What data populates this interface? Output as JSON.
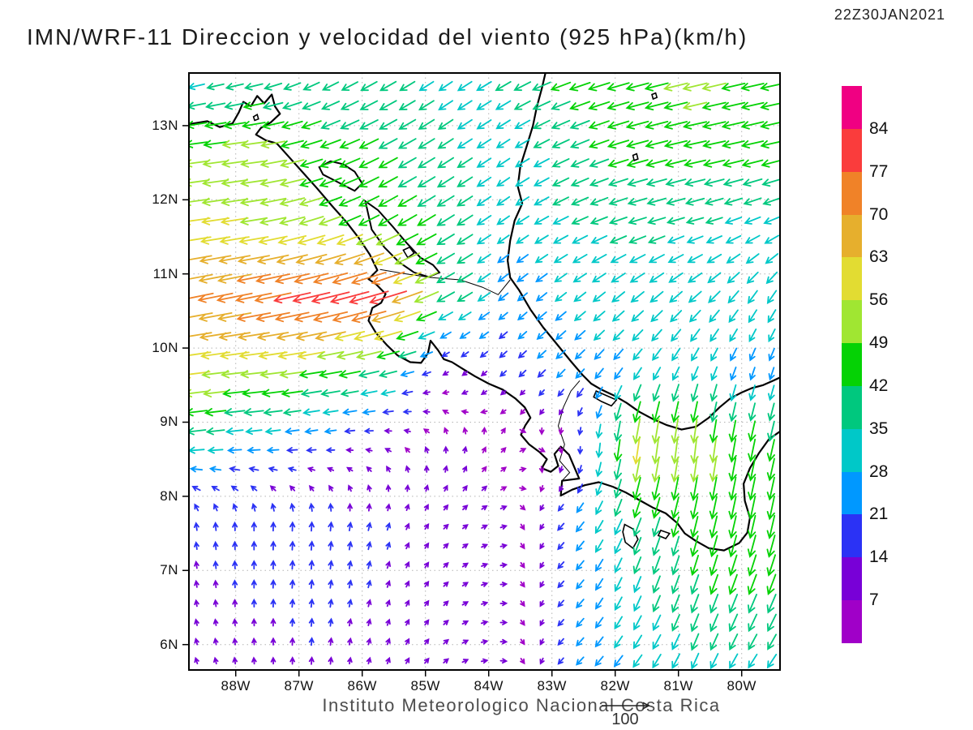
{
  "header": {
    "title": "IMN/WRF-11 Direccion y velocidad del viento (925 hPa)(km/h)",
    "timestamp": "22Z30JAN2021"
  },
  "footer": {
    "credit": "Instituto Meteorologico Nacional Costa Rica",
    "reference_arrow_label": "100"
  },
  "axes": {
    "lat_ticks": [
      {
        "label": "6N",
        "value": 6
      },
      {
        "label": "7N",
        "value": 7
      },
      {
        "label": "8N",
        "value": 8
      },
      {
        "label": "9N",
        "value": 9
      },
      {
        "label": "10N",
        "value": 10
      },
      {
        "label": "11N",
        "value": 11
      },
      {
        "label": "12N",
        "value": 12
      },
      {
        "label": "13N",
        "value": 13
      }
    ],
    "lon_ticks": [
      {
        "label": "88W",
        "value": -88
      },
      {
        "label": "87W",
        "value": -87
      },
      {
        "label": "86W",
        "value": -86
      },
      {
        "label": "85W",
        "value": -85
      },
      {
        "label": "84W",
        "value": -84
      },
      {
        "label": "83W",
        "value": -83
      },
      {
        "label": "82W",
        "value": -82
      },
      {
        "label": "81W",
        "value": -81
      },
      {
        "label": "80W",
        "value": -80
      }
    ]
  },
  "colorbar": {
    "unit": "km/h",
    "levels": [
      7,
      14,
      21,
      28,
      35,
      42,
      49,
      56,
      63,
      70,
      77,
      84
    ],
    "colors": [
      "#A000C8",
      "#7800D7",
      "#2B32F5",
      "#0098FF",
      "#00C8C8",
      "#00C87E",
      "#05D205",
      "#A0E632",
      "#E2DC32",
      "#E6AF2D",
      "#F08228",
      "#FA3C3C",
      "#F00082"
    ]
  },
  "chart_data": {
    "type": "vector_field",
    "title": "IMN/WRF-11 Direccion y velocidad del viento (925 hPa)(km/h)",
    "valid_time": "22Z30JAN2021",
    "units": "km/h",
    "level": "925 hPa",
    "lon_range": [
      -88.74,
      -79.4
    ],
    "lat_range": [
      5.66,
      13.71
    ],
    "reference_vector": {
      "label": "100",
      "value": 100
    },
    "speed_levels": [
      7,
      14,
      21,
      28,
      35,
      42,
      49,
      56,
      63,
      70,
      77,
      84
    ],
    "grid_lats": [
      5.7,
      6.7,
      7.7,
      8.7,
      9.7,
      10.7,
      11.7,
      12.7,
      13.7
    ],
    "grid_lons": [
      -88.7,
      -87.7,
      -86.7,
      -85.7,
      -84.7,
      -83.7,
      -82.7,
      -81.7,
      -80.7,
      -79.7
    ],
    "u": [
      [
        -3,
        -1,
        1,
        3,
        6,
        8,
        -14,
        -18,
        -14,
        -18
      ],
      [
        -2,
        0,
        2,
        4,
        6,
        8,
        -15,
        -13,
        -14,
        -16
      ],
      [
        -2,
        0,
        1,
        4,
        7,
        7,
        -16,
        -14,
        -10,
        -10
      ],
      [
        -35,
        -27,
        -19,
        -9,
        -1,
        5,
        2,
        -8,
        -6,
        -10
      ],
      [
        -57,
        -55,
        -49,
        -40,
        -8,
        -13,
        -18,
        -16,
        -12,
        -8
      ],
      [
        -70,
        -74,
        -77,
        -82,
        -36,
        -18,
        -23,
        -26,
        -25,
        -18
      ],
      [
        -57,
        -55,
        -49,
        -40,
        -35,
        -24,
        -32,
        -36,
        -34,
        -31
      ],
      [
        -47,
        -53,
        -43,
        -38,
        -31,
        -26,
        -36,
        -44,
        -46,
        -44
      ],
      [
        -30,
        -33,
        -30,
        -32,
        -26,
        -32,
        -42,
        -46,
        -50,
        -46
      ]
    ],
    "v": [
      [
        8,
        11,
        14,
        9,
        5,
        -1,
        -14,
        -24,
        -31,
        -26
      ],
      [
        12,
        15,
        16,
        13,
        6,
        0,
        -15,
        -31,
        -39,
        -40
      ],
      [
        15,
        17,
        18,
        15,
        7,
        2,
        -17,
        -37,
        -44,
        -48
      ],
      [
        -4,
        -3,
        -3,
        2,
        8,
        5,
        -6,
        -58,
        -54,
        -44
      ],
      [
        -7,
        -6,
        -8,
        -10,
        -5,
        -12,
        -18,
        -22,
        -27,
        -24
      ],
      [
        -14,
        -15,
        -18,
        -24,
        -20,
        -15,
        -18,
        -21,
        -22,
        -26
      ],
      [
        -8,
        -9,
        -16,
        -22,
        -22,
        -17,
        -15,
        -11,
        -10,
        -13
      ],
      [
        -6,
        -7,
        -14,
        -20,
        -20,
        -17,
        -16,
        -12,
        -10,
        -10
      ],
      [
        -8,
        -9,
        -16,
        -18,
        -18,
        -18,
        -14,
        -12,
        -12,
        -10
      ]
    ]
  },
  "map": {
    "coastlines": [
      {
        "name": "pacific-coast",
        "points": [
          [
            -88.74,
            13.02
          ],
          [
            -88.45,
            13.06
          ],
          [
            -88.25,
            12.98
          ],
          [
            -88.05,
            13.03
          ],
          [
            -87.95,
            13.18
          ],
          [
            -87.88,
            13.32
          ],
          [
            -87.76,
            13.26
          ],
          [
            -87.66,
            13.4
          ],
          [
            -87.55,
            13.3
          ],
          [
            -87.43,
            13.42
          ],
          [
            -87.38,
            13.26
          ],
          [
            -87.3,
            13.16
          ],
          [
            -87.45,
            13.04
          ],
          [
            -87.6,
            12.97
          ],
          [
            -87.68,
            12.88
          ],
          [
            -87.52,
            12.8
          ],
          [
            -87.35,
            12.76
          ],
          [
            -87.16,
            12.58
          ],
          [
            -86.95,
            12.38
          ],
          [
            -86.72,
            12.16
          ],
          [
            -86.48,
            11.92
          ],
          [
            -86.25,
            11.7
          ],
          [
            -86.05,
            11.48
          ],
          [
            -85.88,
            11.26
          ],
          [
            -85.76,
            11.05
          ],
          [
            -85.9,
            10.93
          ],
          [
            -85.78,
            10.86
          ],
          [
            -85.63,
            10.73
          ],
          [
            -85.7,
            10.61
          ],
          [
            -85.84,
            10.54
          ],
          [
            -85.9,
            10.37
          ],
          [
            -85.78,
            10.2
          ],
          [
            -85.61,
            10.04
          ],
          [
            -85.44,
            9.9
          ],
          [
            -85.24,
            9.81
          ],
          [
            -85.07,
            9.8
          ],
          [
            -84.96,
            9.93
          ],
          [
            -84.92,
            10.1
          ],
          [
            -84.8,
            9.97
          ],
          [
            -84.71,
            9.85
          ],
          [
            -84.58,
            9.81
          ],
          [
            -84.43,
            9.73
          ],
          [
            -84.22,
            9.62
          ],
          [
            -84,
            9.52
          ],
          [
            -83.78,
            9.44
          ],
          [
            -83.58,
            9.32
          ],
          [
            -83.43,
            9.2
          ],
          [
            -83.34,
            9.06
          ],
          [
            -83.42,
            8.96
          ],
          [
            -83.49,
            8.83
          ],
          [
            -83.36,
            8.7
          ],
          [
            -83.2,
            8.6
          ],
          [
            -83.08,
            8.5
          ],
          [
            -83.16,
            8.38
          ],
          [
            -83.02,
            8.33
          ],
          [
            -82.9,
            8.41
          ],
          [
            -82.96,
            8.57
          ],
          [
            -82.86,
            8.67
          ],
          [
            -82.73,
            8.56
          ],
          [
            -82.65,
            8.4
          ],
          [
            -82.57,
            8.24
          ],
          [
            -82.84,
            8.21
          ],
          [
            -82.86,
            8.01
          ],
          [
            -82.68,
            8.09
          ],
          [
            -82.48,
            8.15
          ],
          [
            -82.26,
            8.19
          ],
          [
            -82.04,
            8.13
          ],
          [
            -81.83,
            8.05
          ],
          [
            -81.62,
            7.95
          ],
          [
            -81.41,
            7.85
          ],
          [
            -81.2,
            7.77
          ],
          [
            -81.02,
            7.64
          ],
          [
            -80.9,
            7.5
          ],
          [
            -80.73,
            7.4
          ],
          [
            -80.52,
            7.3
          ],
          [
            -80.28,
            7.27
          ],
          [
            -80.04,
            7.37
          ],
          [
            -79.91,
            7.51
          ],
          [
            -79.87,
            7.71
          ],
          [
            -79.95,
            7.94
          ],
          [
            -79.97,
            8.17
          ],
          [
            -79.87,
            8.38
          ],
          [
            -79.73,
            8.58
          ],
          [
            -79.57,
            8.77
          ],
          [
            -79.42,
            8.86
          ],
          [
            -79.35,
            8.9
          ]
        ]
      },
      {
        "name": "caribbean-coast",
        "points": [
          [
            -83.1,
            13.72
          ],
          [
            -83.16,
            13.5
          ],
          [
            -83.24,
            13.25
          ],
          [
            -83.3,
            13
          ],
          [
            -83.4,
            12.72
          ],
          [
            -83.5,
            12.45
          ],
          [
            -83.54,
            12.18
          ],
          [
            -83.47,
            11.95
          ],
          [
            -83.59,
            11.72
          ],
          [
            -83.66,
            11.45
          ],
          [
            -83.7,
            11.18
          ],
          [
            -83.66,
            10.95
          ],
          [
            -83.52,
            10.78
          ],
          [
            -83.34,
            10.52
          ],
          [
            -83.14,
            10.28
          ],
          [
            -82.92,
            10.05
          ],
          [
            -82.7,
            9.82
          ],
          [
            -82.52,
            9.64
          ],
          [
            -82.38,
            9.52
          ],
          [
            -82.22,
            9.44
          ],
          [
            -82.02,
            9.36
          ],
          [
            -81.82,
            9.26
          ],
          [
            -81.62,
            9.14
          ],
          [
            -81.4,
            9.04
          ],
          [
            -81.18,
            8.96
          ],
          [
            -80.95,
            8.9
          ],
          [
            -80.72,
            8.94
          ],
          [
            -80.52,
            9.06
          ],
          [
            -80.35,
            9.2
          ],
          [
            -80.18,
            9.32
          ],
          [
            -80,
            9.4
          ],
          [
            -79.84,
            9.46
          ],
          [
            -79.66,
            9.5
          ],
          [
            -79.5,
            9.56
          ],
          [
            -79.35,
            9.62
          ]
        ]
      }
    ],
    "lakes": [
      {
        "name": "lake-managua",
        "points": [
          [
            -86.68,
            12.44
          ],
          [
            -86.5,
            12.52
          ],
          [
            -86.3,
            12.48
          ],
          [
            -86.12,
            12.38
          ],
          [
            -86,
            12.22
          ],
          [
            -86.12,
            12.12
          ],
          [
            -86.3,
            12.2
          ],
          [
            -86.48,
            12.28
          ],
          [
            -86.62,
            12.34
          ]
        ]
      },
      {
        "name": "lake-nicaragua",
        "points": [
          [
            -85.95,
            11.98
          ],
          [
            -85.75,
            11.86
          ],
          [
            -85.52,
            11.64
          ],
          [
            -85.3,
            11.42
          ],
          [
            -85.08,
            11.22
          ],
          [
            -84.88,
            11.12
          ],
          [
            -84.78,
            11.02
          ],
          [
            -84.95,
            10.96
          ],
          [
            -85.18,
            11.02
          ],
          [
            -85.42,
            11.16
          ],
          [
            -85.65,
            11.36
          ],
          [
            -85.85,
            11.6
          ]
        ]
      }
    ],
    "islands": [
      {
        "name": "ometepe",
        "points": [
          [
            -85.35,
            11.32
          ],
          [
            -85.25,
            11.36
          ],
          [
            -85.18,
            11.28
          ],
          [
            -85.28,
            11.22
          ]
        ]
      },
      {
        "name": "coiba",
        "points": [
          [
            -81.85,
            7.62
          ],
          [
            -81.72,
            7.56
          ],
          [
            -81.64,
            7.42
          ],
          [
            -81.72,
            7.3
          ],
          [
            -81.84,
            7.38
          ],
          [
            -81.88,
            7.52
          ]
        ]
      },
      {
        "name": "cebaco",
        "points": [
          [
            -81.28,
            7.54
          ],
          [
            -81.14,
            7.5
          ],
          [
            -81.2,
            7.43
          ],
          [
            -81.32,
            7.47
          ]
        ]
      },
      {
        "name": "bocas",
        "points": [
          [
            -82.3,
            9.42
          ],
          [
            -82.14,
            9.36
          ],
          [
            -81.98,
            9.3
          ],
          [
            -82.06,
            9.22
          ],
          [
            -82.22,
            9.28
          ],
          [
            -82.34,
            9.34
          ]
        ]
      },
      {
        "name": "providencia",
        "points": [
          [
            -81.42,
            13.42
          ],
          [
            -81.36,
            13.44
          ],
          [
            -81.34,
            13.38
          ],
          [
            -81.4,
            13.36
          ]
        ]
      },
      {
        "name": "san-andres",
        "points": [
          [
            -81.72,
            12.6
          ],
          [
            -81.66,
            12.62
          ],
          [
            -81.64,
            12.55
          ],
          [
            -81.7,
            12.53
          ]
        ]
      },
      {
        "name": "fonseca-isle",
        "points": [
          [
            -87.72,
            13.12
          ],
          [
            -87.66,
            13.15
          ],
          [
            -87.64,
            13.09
          ],
          [
            -87.7,
            13.07
          ]
        ]
      }
    ],
    "borders": [
      {
        "name": "border-nicaragua-costarica",
        "points": [
          [
            -85.72,
            11.06
          ],
          [
            -85.3,
            11
          ],
          [
            -84.9,
            10.95
          ],
          [
            -84.45,
            10.92
          ],
          [
            -84.1,
            10.82
          ],
          [
            -83.85,
            10.72
          ],
          [
            -83.66,
            10.92
          ]
        ]
      },
      {
        "name": "border-costarica-panama",
        "points": [
          [
            -82.56,
            9.56
          ],
          [
            -82.7,
            9.42
          ],
          [
            -82.82,
            9.2
          ],
          [
            -82.9,
            8.95
          ],
          [
            -82.8,
            8.7
          ],
          [
            -82.88,
            8.48
          ],
          [
            -82.72,
            8.32
          ],
          [
            -82.84,
            8.21
          ]
        ]
      }
    ]
  }
}
